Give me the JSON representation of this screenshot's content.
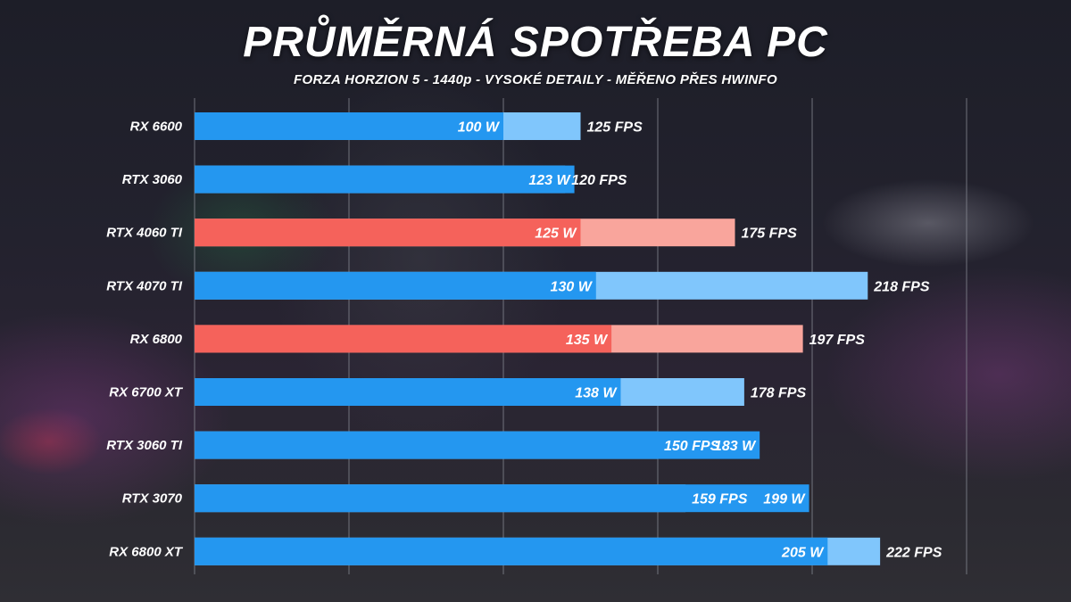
{
  "chart_data": {
    "type": "bar",
    "orientation": "horizontal",
    "title": "PRŮMĚRNÁ SPOTŘEBA PC",
    "subtitle": "FORZA HORZION 5 - 1440p - VYSOKÉ DETAILY - MĚŘENO PŘES HWINFO",
    "categories": [
      "RX 6600",
      "RTX 3060",
      "RTX 4060 TI",
      "RTX 4070 TI",
      "RX 6800",
      "RX 6700 XT",
      "RTX 3060 TI",
      "RTX 3070",
      "RX 6800 XT"
    ],
    "series": [
      {
        "values": [
          100,
          123,
          125,
          130,
          135,
          138,
          183,
          199,
          205
        ],
        "labels": [
          "100 W",
          "123 W",
          "125 W",
          "130 W",
          "135 W",
          "138 W",
          "183 W",
          "199 W",
          "205 W"
        ]
      },
      {
        "values": [
          125,
          120,
          175,
          218,
          197,
          178,
          150,
          159,
          222
        ],
        "labels": [
          "125 FPS",
          "120 FPS",
          "175 FPS",
          "218 FPS",
          "197 FPS",
          "178 FPS",
          "150 FPS",
          "159 FPS",
          "222 FPS"
        ]
      }
    ],
    "highlighted": [
      "RTX 4060 TI",
      "RX 6800"
    ],
    "grid": true,
    "legend": "none",
    "colors": {
      "power": "#2497f0",
      "fps": "#80c6fc",
      "power_highlight": "#f5625b",
      "fps_highlight": "#f9a59c",
      "grid": "#8b8e97"
    }
  }
}
